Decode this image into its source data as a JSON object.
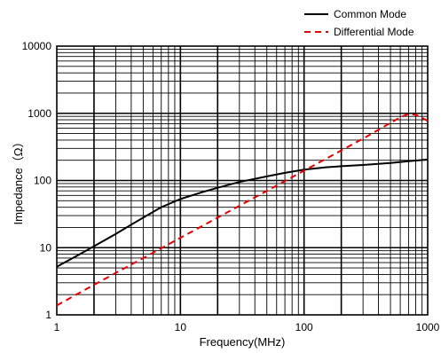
{
  "chart_data": {
    "type": "line",
    "title": "",
    "xlabel": "Frequency(MHz)",
    "ylabel": "Impedance（Ω）",
    "x_scale": "log",
    "y_scale": "log",
    "xlim": [
      1,
      1000
    ],
    "ylim": [
      1,
      10000
    ],
    "grid": true,
    "legend_position": "top-right",
    "x_ticks": [
      {
        "value": 1,
        "label": "1"
      },
      {
        "value": 10,
        "label": "10"
      },
      {
        "value": 100,
        "label": "100"
      },
      {
        "value": 1000,
        "label": "1000"
      }
    ],
    "y_ticks": [
      {
        "value": 1,
        "label": "1"
      },
      {
        "value": 10,
        "label": "10"
      },
      {
        "value": 100,
        "label": "100"
      },
      {
        "value": 1000,
        "label": "1000"
      },
      {
        "value": 10000,
        "label": "10000"
      }
    ],
    "series": [
      {
        "name": "Common Mode",
        "color": "#000000",
        "dash": "solid",
        "points": [
          [
            1,
            5.2
          ],
          [
            1.5,
            7.8
          ],
          [
            2,
            10.5
          ],
          [
            3,
            16
          ],
          [
            4,
            22
          ],
          [
            5,
            28
          ],
          [
            7,
            40
          ],
          [
            10,
            53
          ],
          [
            15,
            67
          ],
          [
            20,
            78
          ],
          [
            30,
            95
          ],
          [
            50,
            115
          ],
          [
            70,
            130
          ],
          [
            100,
            145
          ],
          [
            150,
            157
          ],
          [
            200,
            163
          ],
          [
            300,
            170
          ],
          [
            500,
            182
          ],
          [
            700,
            194
          ],
          [
            1000,
            205
          ]
        ]
      },
      {
        "name": "Differential Mode",
        "color": "#e60000",
        "dash": "dashed",
        "points": [
          [
            1,
            1.38
          ],
          [
            2,
            2.8
          ],
          [
            5,
            7
          ],
          [
            10,
            14
          ],
          [
            20,
            28
          ],
          [
            50,
            70
          ],
          [
            100,
            140
          ],
          [
            200,
            280
          ],
          [
            300,
            420
          ],
          [
            500,
            720
          ],
          [
            600,
            870
          ],
          [
            700,
            980
          ],
          [
            800,
            950
          ],
          [
            900,
            860
          ],
          [
            1000,
            770
          ]
        ]
      }
    ]
  }
}
